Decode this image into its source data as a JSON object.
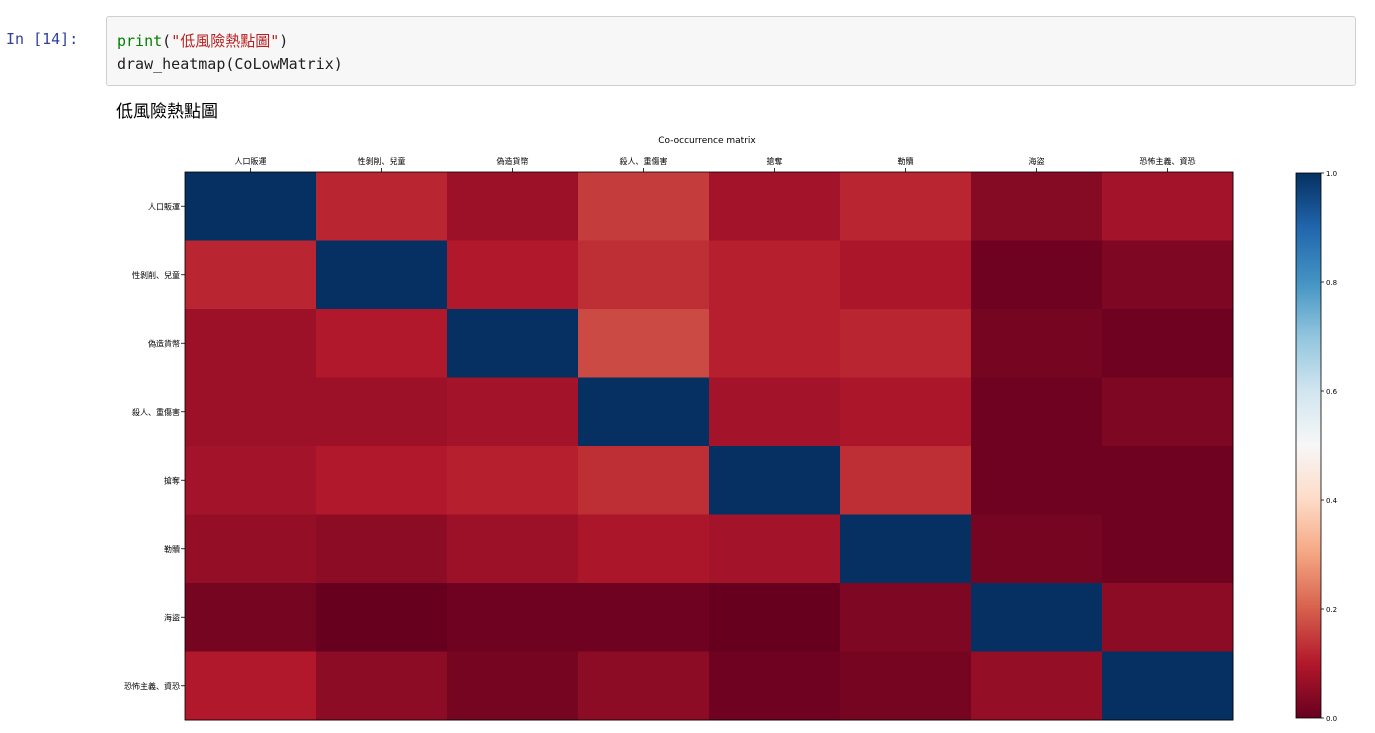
{
  "cell": {
    "prompt": "In [14]:",
    "code_line1": {
      "func": "print",
      "open": "(",
      "arg": "\"低風險熱點圖\"",
      "close": ")"
    },
    "code_line2": "draw_heatmap(CoLowMatrix)"
  },
  "output": {
    "text": "低風險熱點圖"
  },
  "chart_data": {
    "type": "heatmap",
    "title": "Co-occurrence matrix",
    "x_labels": [
      "人口販運",
      "性剝削、兒童",
      "偽造貨幣",
      "殺人、重傷害",
      "搶奪",
      "勒贖",
      "海盜",
      "恐怖主義、資恐"
    ],
    "y_labels": [
      "人口販運",
      "性剝削、兒童",
      "偽造貨幣",
      "殺人、重傷害",
      "搶奪",
      "勒贖",
      "海盜",
      "恐怖主義、資恐"
    ],
    "values": [
      [
        1.0,
        0.12,
        0.07,
        0.15,
        0.08,
        0.12,
        0.04,
        0.08
      ],
      [
        0.12,
        1.0,
        0.1,
        0.13,
        0.11,
        0.09,
        0.01,
        0.03
      ],
      [
        0.07,
        0.1,
        1.0,
        0.17,
        0.11,
        0.12,
        0.02,
        0.01
      ],
      [
        0.07,
        0.07,
        0.08,
        1.0,
        0.08,
        0.09,
        0.01,
        0.03
      ],
      [
        0.08,
        0.1,
        0.11,
        0.13,
        1.0,
        0.13,
        0.01,
        0.01
      ],
      [
        0.06,
        0.05,
        0.07,
        0.09,
        0.08,
        1.0,
        0.02,
        0.01
      ],
      [
        0.02,
        0.0,
        0.01,
        0.01,
        0.0,
        0.03,
        1.0,
        0.05
      ],
      [
        0.1,
        0.05,
        0.02,
        0.05,
        0.01,
        0.02,
        0.06,
        1.0
      ]
    ],
    "colorbar": {
      "range": [
        0.0,
        1.0
      ],
      "ticks": [
        "0.0",
        "0.2",
        "0.4",
        "0.6",
        "0.8",
        "1.0"
      ]
    },
    "colormap": [
      "#67001f",
      "#b2182b",
      "#d6604d",
      "#f4a582",
      "#fddbc7",
      "#f7f7f7",
      "#d1e5f0",
      "#92c5de",
      "#4393c3",
      "#2166ac",
      "#053061"
    ]
  }
}
